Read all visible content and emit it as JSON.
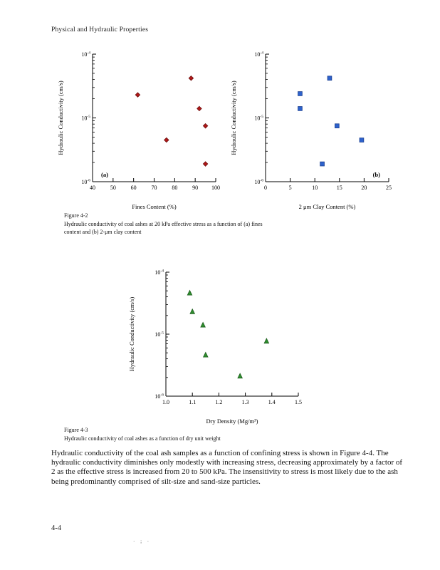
{
  "page": {
    "header": "Physical and Hydraulic Properties",
    "page_number": "4-4",
    "footer_marks": "· ; ·"
  },
  "figure_4_2": {
    "label": "Figure 4-2",
    "caption_lines": [
      "Hydraulic conductivity of coal ashes at 20 kPa effective stress as a function of (a) fines",
      "content and (b) 2-μm clay content"
    ]
  },
  "figure_4_3": {
    "label": "Figure 4-3",
    "caption_lines": [
      "Hydraulic conductivity of coal ashes as a function of dry unit weight"
    ]
  },
  "body_paragraph": "Hydraulic conductivity of the coal ash samples as a function of confining stress is shown in Figure 4-4. The hydraulic conductivity diminishes only modestly with increasing stress, decreasing approximately by a factor of 2 as the effective stress is increased from 20 to 500 kPa. The insensitivity to stress is most likely due to the ash being predominantly comprised of silt-size and sand-size particles.",
  "chart_data": [
    {
      "type": "scatter",
      "panel_label": "(a)",
      "panel_label_pos": "left",
      "xlabel": "Fines Content (%)",
      "ylabel": "Hydraulic Conductivity (cm/s)",
      "xlim": [
        40,
        100
      ],
      "xticks": [
        40,
        50,
        60,
        70,
        80,
        90,
        100
      ],
      "xtick_labels": [
        "40",
        "50",
        "60",
        "70",
        "80",
        "90",
        "100"
      ],
      "ylog": true,
      "ylim": [
        1e-06,
        0.0001
      ],
      "ylim_exp": [
        -6,
        -4
      ],
      "grid": false,
      "marker": "diamond",
      "color": "#b01818",
      "edge_color": "#6d0e0e",
      "points": [
        [
          62,
          2.3e-05
        ],
        [
          76,
          4.5e-06
        ],
        [
          88,
          4.2e-05
        ],
        [
          92,
          1.4e-05
        ],
        [
          95,
          7.5e-06
        ],
        [
          95,
          1.9e-06
        ]
      ]
    },
    {
      "type": "scatter",
      "panel_label": "(b)",
      "panel_label_pos": "right",
      "xlabel": "2 μm Clay Content (%)",
      "ylabel": "Hydraulic Conductivity (cm/s)",
      "xlim": [
        0,
        25
      ],
      "xticks": [
        0,
        5,
        10,
        15,
        20,
        25
      ],
      "xtick_labels": [
        "0",
        "5",
        "10",
        "15",
        "20",
        "25"
      ],
      "ylog": true,
      "ylim": [
        1e-06,
        0.0001
      ],
      "ylim_exp": [
        -6,
        -4
      ],
      "grid": false,
      "marker": "square",
      "color": "#2e62cc",
      "edge_color": "#1b3f8f",
      "points": [
        [
          7,
          2.4e-05
        ],
        [
          7,
          1.4e-05
        ],
        [
          13,
          4.2e-05
        ],
        [
          11.5,
          1.9e-06
        ],
        [
          14.5,
          7.5e-06
        ],
        [
          19.5,
          4.5e-06
        ]
      ]
    },
    {
      "type": "scatter",
      "panel_label": "",
      "panel_label_pos": "left",
      "xlabel": "Dry Density (Mg/m³)",
      "ylabel": "Hydraulic Conductivity (cm/s)",
      "xlim": [
        1.0,
        1.5
      ],
      "xticks": [
        1.0,
        1.1,
        1.2,
        1.3,
        1.4,
        1.5
      ],
      "xtick_labels": [
        "1.0",
        "1.1",
        "1.2",
        "1.3",
        "1.4",
        "1.5"
      ],
      "ylog": true,
      "ylim": [
        1e-06,
        0.0001
      ],
      "ylim_exp": [
        -6,
        -4
      ],
      "grid": false,
      "marker": "triangle",
      "color": "#2f8f2f",
      "edge_color": "#1d5c1d",
      "points": [
        [
          1.09,
          4.6e-05
        ],
        [
          1.1,
          2.3e-05
        ],
        [
          1.14,
          1.4e-05
        ],
        [
          1.15,
          4.6e-06
        ],
        [
          1.28,
          2.1e-06
        ],
        [
          1.38,
          7.7e-06
        ]
      ]
    }
  ]
}
